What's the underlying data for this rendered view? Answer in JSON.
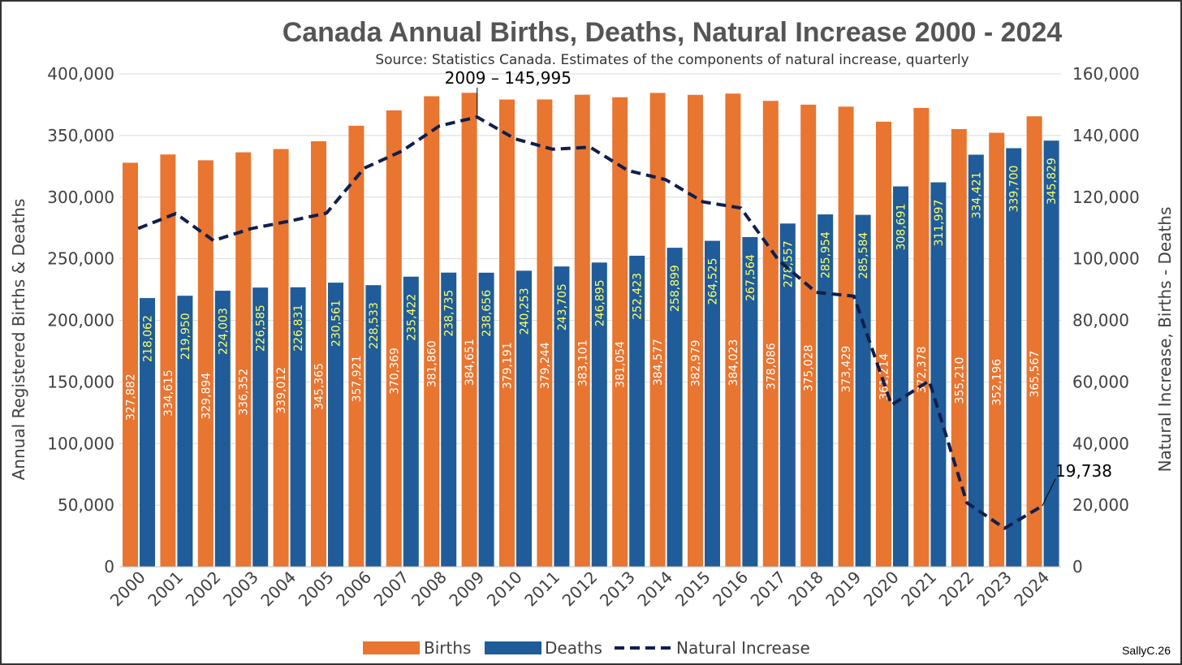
{
  "chart_data": {
    "type": "bar",
    "title": "Canada Annual Births, Deaths, Natural Increase 2000 - 2024",
    "subtitle": "Source: Statistics Canada. Estimates of the components of natural increase, quarterly",
    "categories": [
      "2000",
      "2001",
      "2002",
      "2003",
      "2004",
      "2005",
      "2006",
      "2007",
      "2008",
      "2009",
      "2010",
      "2011",
      "2012",
      "2013",
      "2014",
      "2015",
      "2016",
      "2017",
      "2018",
      "2019",
      "2020",
      "2021",
      "2022",
      "2023",
      "2024"
    ],
    "series": [
      {
        "name": "Births",
        "kind": "bar",
        "axis": "left",
        "color": "#E87530",
        "values": [
          327882,
          334615,
          329894,
          336352,
          339012,
          345365,
          357921,
          370369,
          381860,
          384651,
          379191,
          379244,
          383101,
          381054,
          384577,
          382979,
          384023,
          378086,
          375028,
          373429,
          361214,
          372378,
          355210,
          352196,
          365567
        ],
        "labels": [
          "327,882",
          "334,615",
          "329,894",
          "336,352",
          "339,012",
          "345,365",
          "357,921",
          "370,369",
          "381,860",
          "384,651",
          "379,191",
          "379,244",
          "383,101",
          "381,054",
          "384,577",
          "382,979",
          "384,023",
          "378,086",
          "375,028",
          "373,429",
          "361,214",
          "372,378",
          "355,210",
          "352,196",
          "365,567"
        ]
      },
      {
        "name": "Deaths",
        "kind": "bar",
        "axis": "left",
        "color": "#1F5C99",
        "values": [
          218062,
          219950,
          224003,
          226585,
          226831,
          230561,
          228533,
          235422,
          238735,
          238656,
          240253,
          243705,
          246895,
          252423,
          258899,
          264525,
          267564,
          278557,
          285954,
          285584,
          308691,
          311997,
          334421,
          339700,
          345829
        ],
        "labels": [
          "218,062",
          "219,950",
          "224,003",
          "226,585",
          "226,831",
          "230,561",
          "228,533",
          "235,422",
          "238,735",
          "238,656",
          "240,253",
          "243,705",
          "246,895",
          "252,423",
          "258,899",
          "264,525",
          "267,564",
          "278,557",
          "285,954",
          "285,584",
          "308,691",
          "311,997",
          "334,421",
          "339,700",
          "345,829"
        ]
      },
      {
        "name": "Natural Increase",
        "kind": "line",
        "style": "dashed",
        "axis": "right",
        "color": "#0F1F4D",
        "values": [
          109820,
          114665,
          105891,
          109767,
          112181,
          114804,
          129388,
          134947,
          143125,
          145995,
          138938,
          135539,
          136206,
          128631,
          125678,
          118454,
          116459,
          99529,
          89074,
          87845,
          52523,
          60381,
          20789,
          12496,
          19738
        ]
      }
    ],
    "left_axis": {
      "label": "Annual Registered Births & Deaths",
      "ylim": [
        0,
        400000
      ],
      "ticks": [
        "0",
        "50,000",
        "100,000",
        "150,000",
        "200,000",
        "250,000",
        "300,000",
        "350,000",
        "400,000"
      ]
    },
    "right_axis": {
      "label": "Natural Increase, Births - Deaths",
      "ylim": [
        0,
        160000
      ],
      "ticks": [
        "0",
        "20,000",
        "40,000",
        "60,000",
        "80,000",
        "100,000",
        "120,000",
        "140,000",
        "160,000"
      ]
    },
    "annotations": [
      {
        "text": "2009 – 145,995",
        "year": "2009"
      },
      {
        "text": "19,738",
        "year": "2024"
      }
    ],
    "grid": true,
    "legend_position": "bottom"
  },
  "signature": "SallyC.26",
  "colors": {
    "births": "#E87530",
    "deaths": "#1F5C99",
    "natural": "#0F1F4D",
    "death_label": "#FFFF66",
    "birth_label": "#FFFFFF"
  }
}
